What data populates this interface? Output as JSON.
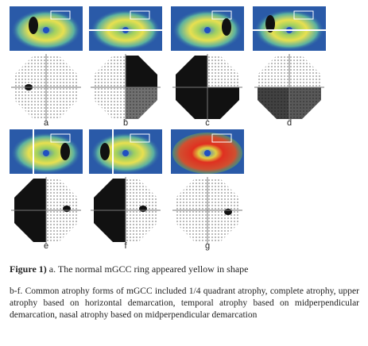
{
  "figure": {
    "panels": [
      "a",
      "b",
      "c",
      "d",
      "e",
      "f",
      "g"
    ],
    "caption": {
      "label": "Figure 1)",
      "line1": "a. The normal mGCC ring appeared yellow in shape",
      "paragraph": "b-f. Common atrophy forms of mGCC included 1/4 quadrant atrophy, complete atrophy, upper atrophy based on horizontal demarcation, temporal atrophy based on midperpendicular demarcation, nasal atrophy based on midperpendicular demarcation"
    }
  }
}
